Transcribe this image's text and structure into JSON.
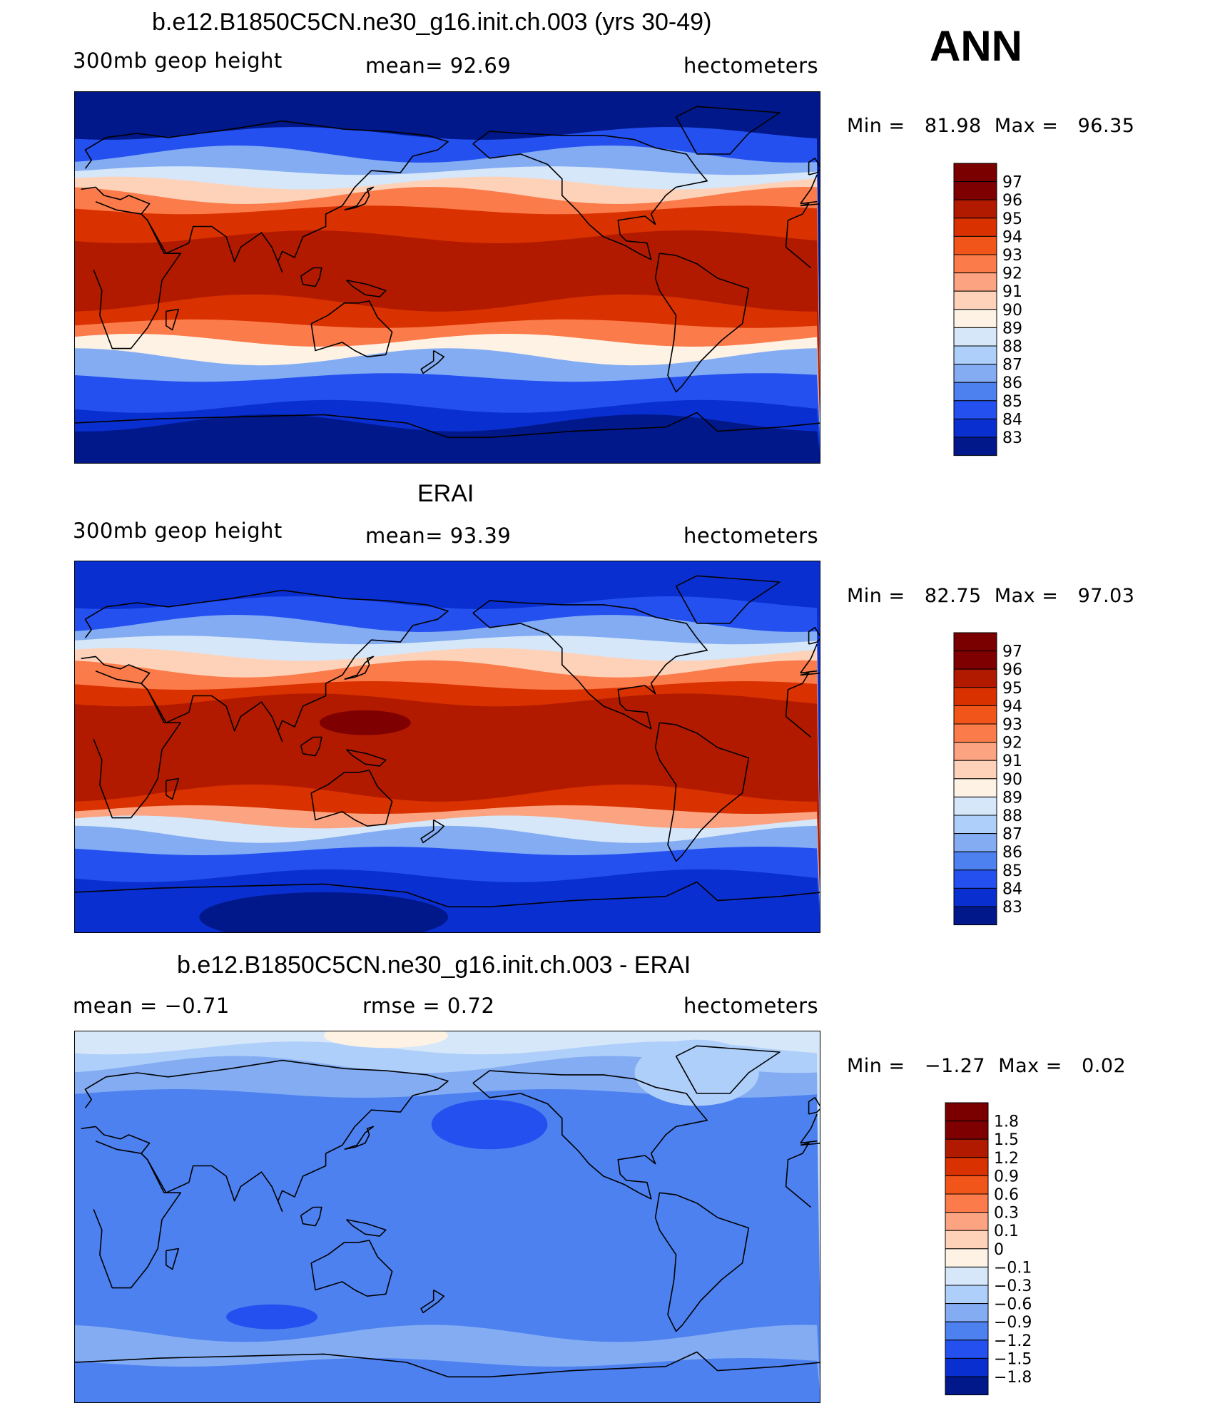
{
  "header": {
    "season": "ANN"
  },
  "panels": [
    {
      "id": "model",
      "title": "b.e12.B1850C5CN.ne30_g16.init.ch.003 (yrs 30-49)",
      "left_label": "300mb  geop  height",
      "center_label": "mean=   92.69",
      "units": "hectometers",
      "minmax": {
        "min_label": "Min  =",
        "min_value": "81.98",
        "max_label": "Max  =",
        "max_value": "96.35"
      },
      "colorbar": {
        "labels": [
          "97",
          "96",
          "95",
          "94",
          "93",
          "92",
          "91",
          "90",
          "89",
          "88",
          "87",
          "86",
          "85",
          "84",
          "83"
        ],
        "colors": [
          "#7f0000",
          "#b21a00",
          "#d93200",
          "#f25519",
          "#fc7b4a",
          "#fca381",
          "#fdd2b8",
          "#fdf2e4",
          "#d6e7fa",
          "#aecffa",
          "#83acf2",
          "#4d81f0",
          "#2450f0",
          "#0a2fd0",
          "#00188a"
        ]
      },
      "map_bands": [
        {
          "lat": 90,
          "level": 83
        },
        {
          "lat": 70,
          "level": 85
        },
        {
          "lat": 60,
          "level": 87
        },
        {
          "lat": 52,
          "level": 89
        },
        {
          "lat": 46,
          "level": 91
        },
        {
          "lat": 40,
          "level": 93
        },
        {
          "lat": 33,
          "level": 95
        },
        {
          "lat": 20,
          "level": 96
        },
        {
          "lat": -12,
          "level": 95
        },
        {
          "lat": -22,
          "level": 93
        },
        {
          "lat": -30,
          "level": 90
        },
        {
          "lat": -38,
          "level": 87
        },
        {
          "lat": -48,
          "level": 85
        },
        {
          "lat": -62,
          "level": 84
        },
        {
          "lat": -70,
          "level": 83
        }
      ],
      "map_blobs": []
    },
    {
      "id": "obs",
      "title": "ERAI",
      "left_label": "300mb  geop  height",
      "center_label": "mean=   93.39",
      "units": "hectometers",
      "minmax": {
        "min_label": "Min  =",
        "min_value": "82.75",
        "max_label": "Max  =",
        "max_value": "97.03"
      },
      "colorbar": {
        "labels": [
          "97",
          "96",
          "95",
          "94",
          "93",
          "92",
          "91",
          "90",
          "89",
          "88",
          "87",
          "86",
          "85",
          "84",
          "83"
        ],
        "colors": [
          "#7f0000",
          "#b21a00",
          "#d93200",
          "#f25519",
          "#fc7b4a",
          "#fca381",
          "#fdd2b8",
          "#fdf2e4",
          "#d6e7fa",
          "#aecffa",
          "#83acf2",
          "#4d81f0",
          "#2450f0",
          "#0a2fd0",
          "#00188a"
        ]
      },
      "map_bands": [
        {
          "lat": 90,
          "level": 84
        },
        {
          "lat": 70,
          "level": 85
        },
        {
          "lat": 60,
          "level": 87
        },
        {
          "lat": 52,
          "level": 89
        },
        {
          "lat": 45,
          "level": 91
        },
        {
          "lat": 38,
          "level": 93
        },
        {
          "lat": 30,
          "level": 95
        },
        {
          "lat": 23,
          "level": 96
        },
        {
          "lat": -22,
          "level": 95
        },
        {
          "lat": -30,
          "level": 92
        },
        {
          "lat": -36,
          "level": 89
        },
        {
          "lat": -42,
          "level": 87
        },
        {
          "lat": -50,
          "level": 85
        },
        {
          "lat": -62,
          "level": 84
        }
      ],
      "map_blobs": [
        {
          "lon": 140,
          "lat": 12,
          "rlon": 22,
          "rlat": 3,
          "level": 97
        },
        {
          "lon": 120,
          "lat": -82,
          "rlon": 60,
          "rlat": 6,
          "level": 83
        }
      ]
    },
    {
      "id": "diff",
      "title": "b.e12.B1850C5CN.ne30_g16.init.ch.003 - ERAI",
      "left_label": "mean  =    −0.71",
      "center_label": "rmse  =     0.72",
      "units": "hectometers",
      "minmax": {
        "min_label": "Min  =",
        "min_value": "−1.27",
        "max_label": "Max  =",
        "max_value": "0.02"
      },
      "colorbar": {
        "labels": [
          "1.8",
          "1.5",
          "1.2",
          "0.9",
          "0.6",
          "0.3",
          "0.1",
          "0",
          "−0.1",
          "−0.3",
          "−0.6",
          "−0.9",
          "−1.2",
          "−1.5",
          "−1.8"
        ],
        "colors": [
          "#7f0000",
          "#b21a00",
          "#d93200",
          "#f25519",
          "#fc7b4a",
          "#fca381",
          "#fdd2b8",
          "#fdf2e4",
          "#d6e7fa",
          "#aecffa",
          "#83acf2",
          "#4d81f0",
          "#2450f0",
          "#0a2fd0",
          "#00188a"
        ]
      },
      "map_bands": [
        {
          "lat": 90,
          "level": -0.1
        },
        {
          "lat": 82,
          "level": -0.3
        },
        {
          "lat": 74,
          "level": -0.6
        },
        {
          "lat": 60,
          "level": -0.9
        },
        {
          "lat": -40,
          "level": -0.9
        },
        {
          "lat": -56,
          "level": -0.6
        },
        {
          "lat": -70,
          "level": -0.9
        }
      ],
      "map_blobs": [
        {
          "lon": 200,
          "lat": 45,
          "rlon": 28,
          "rlat": 6,
          "level": -1.2
        },
        {
          "lon": 95,
          "lat": -48,
          "rlon": 22,
          "rlat": 3,
          "level": -1.2
        },
        {
          "lon": 300,
          "lat": 70,
          "rlon": 30,
          "rlat": 8,
          "level": -0.3
        },
        {
          "lon": 150,
          "lat": 88,
          "rlon": 30,
          "rlat": 3,
          "level": 0
        }
      ]
    }
  ]
}
